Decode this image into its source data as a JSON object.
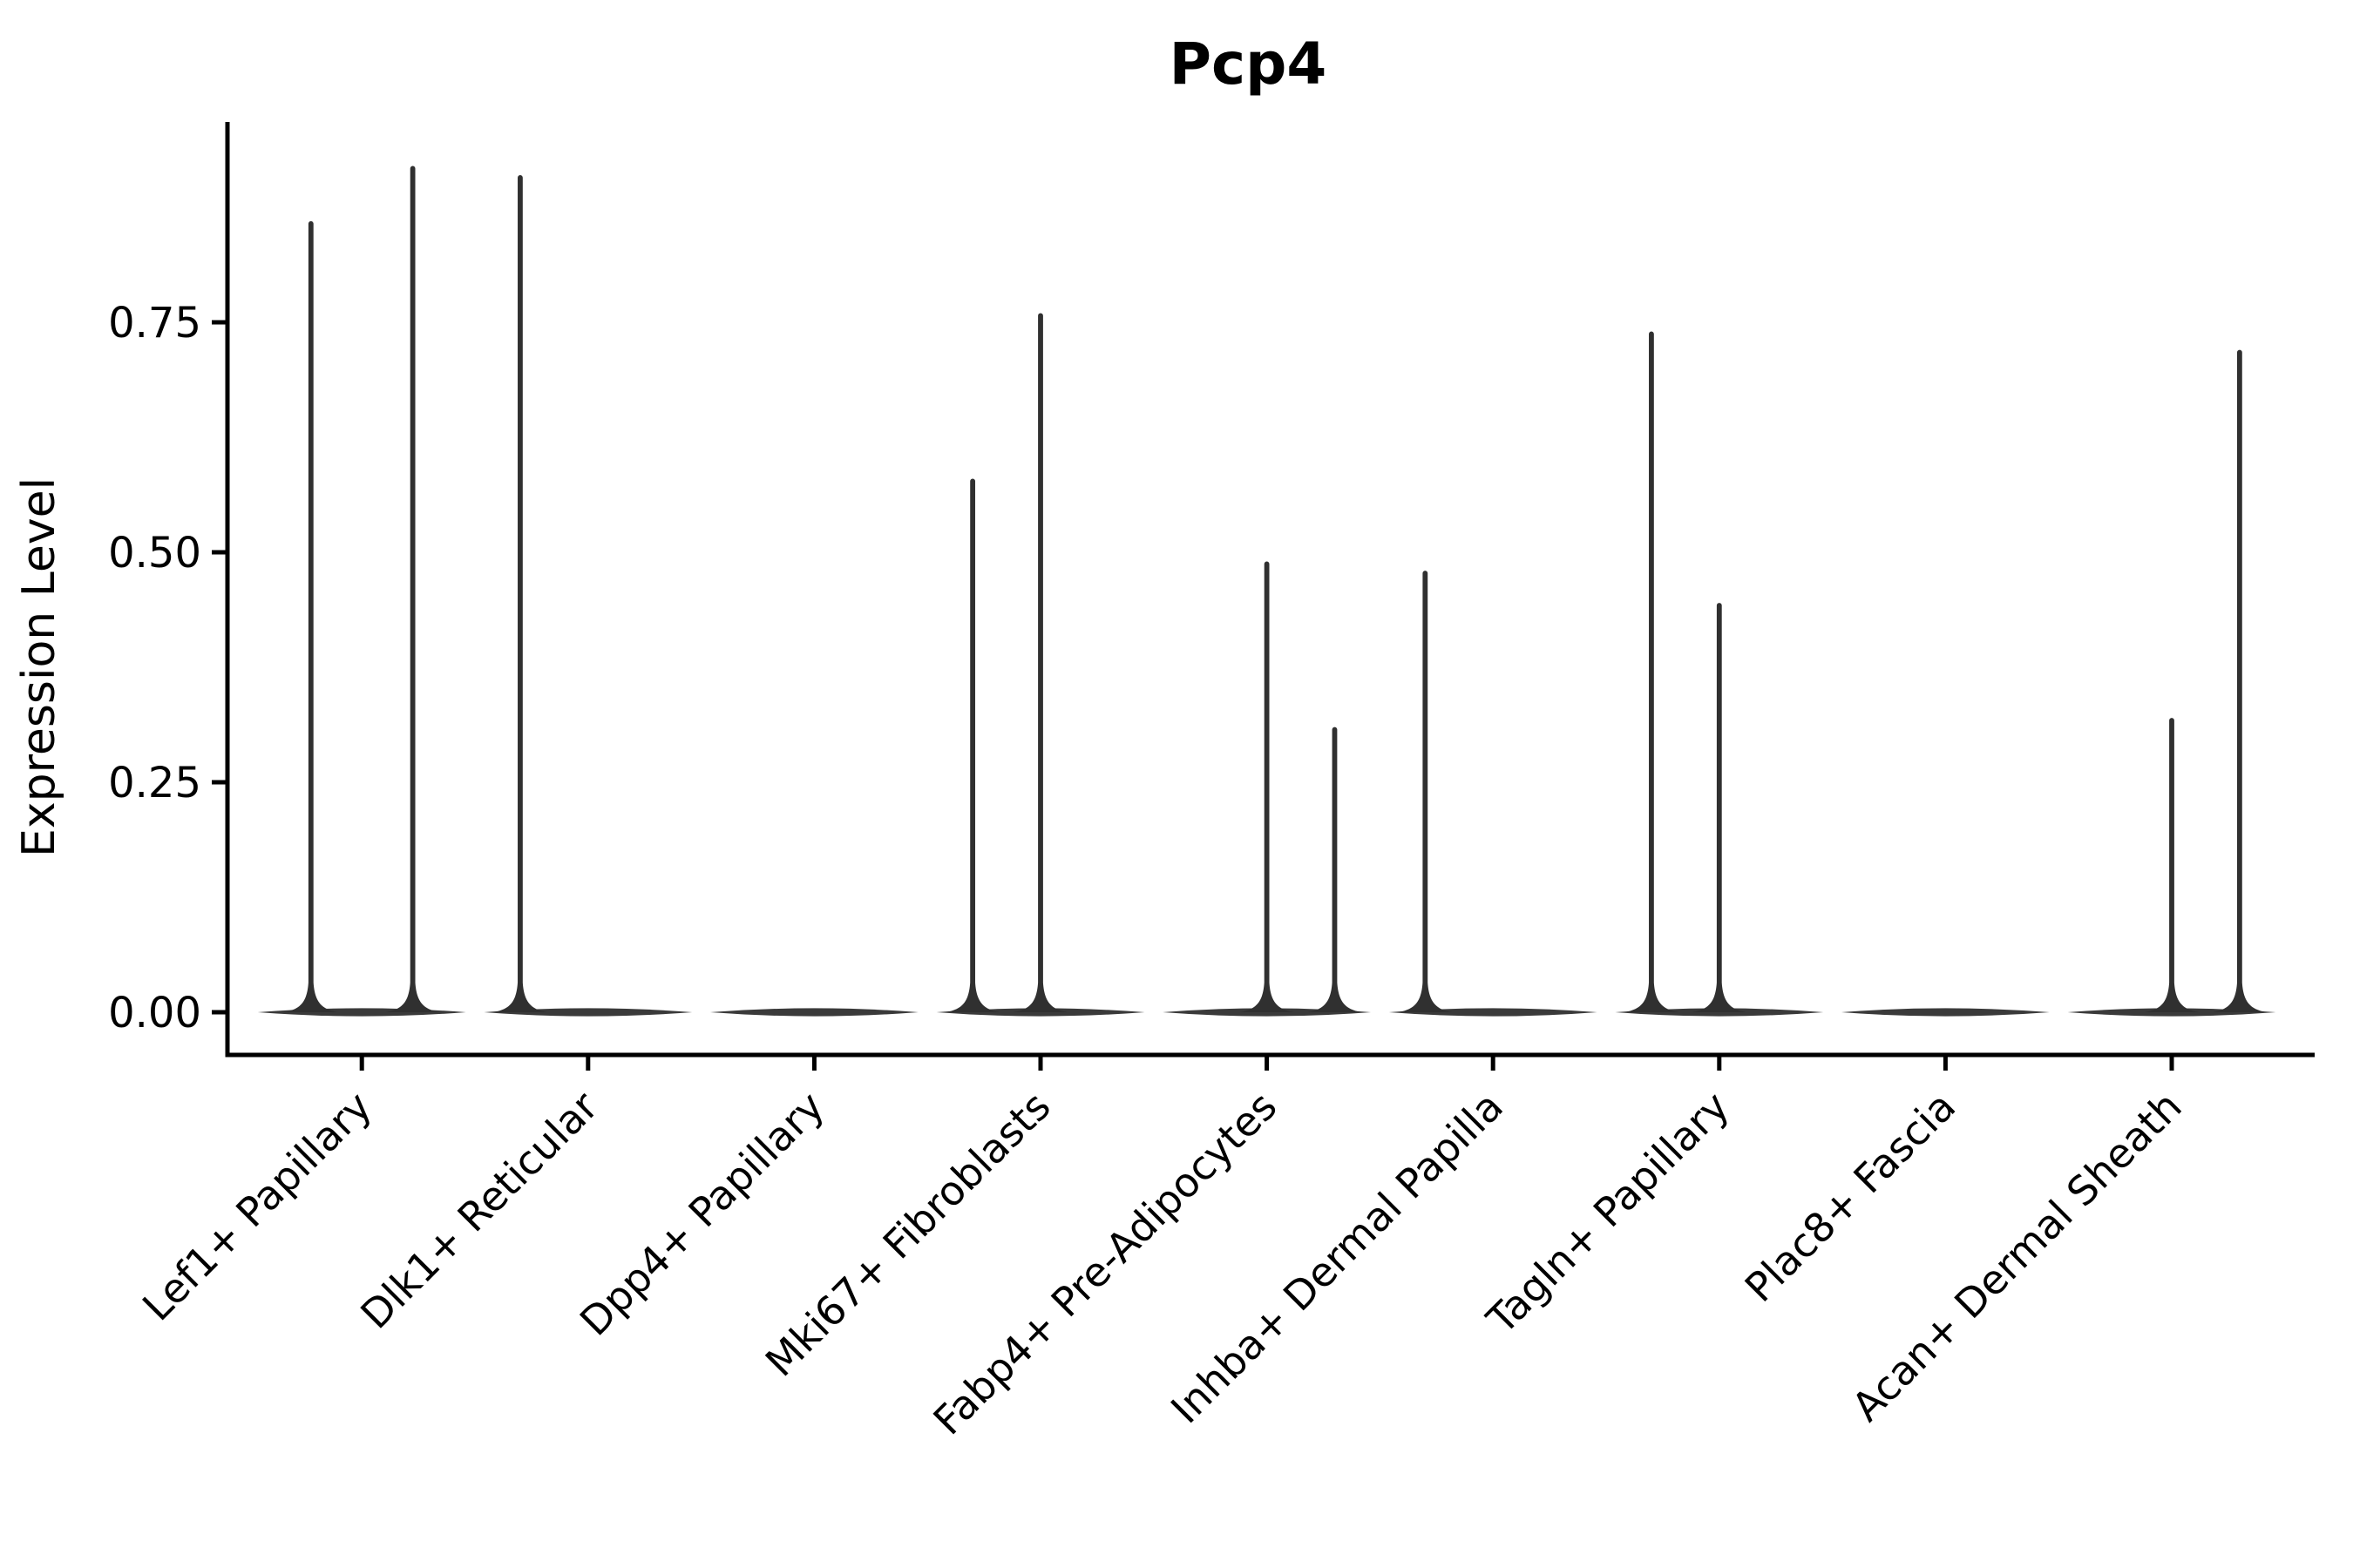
{
  "figure": {
    "title": "Pcp4",
    "y_axis": {
      "label": "Expression Level",
      "tick_labels": [
        "0.00",
        "0.25",
        "0.50",
        "0.75"
      ]
    },
    "colors": {
      "axis": "#000000",
      "text": "#000000",
      "violin_fill": "#303030",
      "violin_base_fill": "#3a3a3a"
    }
  },
  "chart_data": {
    "type": "violin",
    "title": "Pcp4",
    "xlabel": "",
    "ylabel": "Expression Level",
    "ylim": [
      -0.045,
      0.97
    ],
    "yticks": [
      0,
      0.25,
      0.5,
      0.75
    ],
    "ytick_labels": [
      "0.00",
      "0.25",
      "0.50",
      "0.75"
    ],
    "grid": false,
    "legend": null,
    "x_tick_rotation_deg": 45,
    "categories": [
      "Lef1+ Papillary",
      "Dlk1+ Reticular",
      "Dpp4+ Papillary",
      "Mki67+ Fibroblasts",
      "Fabp4+ Pre-Adipocytes",
      "Inhba+ Dermal Papilla",
      "Tagln+ Papillary",
      "Plac8+ Fascia",
      "Acan+ Dermal Sheath"
    ],
    "description": "Violin plot of Pcp4 expression per cluster; density mass sits at 0 (flat base) with thin spikes rising to the maximum expression of dodged sub-violins.",
    "violins": [
      {
        "category": "Lef1+ Papillary",
        "base_halfwidth_frac": 0.46,
        "spikes": [
          {
            "offset_frac": -0.225,
            "max": 0.86
          },
          {
            "offset_frac": 0.225,
            "max": 0.92
          }
        ]
      },
      {
        "category": "Dlk1+ Reticular",
        "base_halfwidth_frac": 0.46,
        "spikes": [
          {
            "offset_frac": -0.3,
            "max": 0.91
          }
        ]
      },
      {
        "category": "Dpp4+ Papillary",
        "base_halfwidth_frac": 0.46,
        "spikes": []
      },
      {
        "category": "Mki67+ Fibroblasts",
        "base_halfwidth_frac": 0.46,
        "spikes": [
          {
            "offset_frac": -0.3,
            "max": 0.58
          },
          {
            "offset_frac": 0.0,
            "max": 0.76
          }
        ]
      },
      {
        "category": "Fabp4+ Pre-Adipocytes",
        "base_halfwidth_frac": 0.46,
        "spikes": [
          {
            "offset_frac": 0.0,
            "max": 0.49
          },
          {
            "offset_frac": 0.3,
            "max": 0.31
          }
        ]
      },
      {
        "category": "Inhba+ Dermal Papilla",
        "base_halfwidth_frac": 0.46,
        "spikes": [
          {
            "offset_frac": -0.3,
            "max": 0.48
          }
        ]
      },
      {
        "category": "Tagln+ Papillary",
        "base_halfwidth_frac": 0.46,
        "spikes": [
          {
            "offset_frac": -0.3,
            "max": 0.74
          },
          {
            "offset_frac": 0.0,
            "max": 0.445
          }
        ]
      },
      {
        "category": "Plac8+ Fascia",
        "base_halfwidth_frac": 0.46,
        "spikes": []
      },
      {
        "category": "Acan+ Dermal Sheath",
        "base_halfwidth_frac": 0.46,
        "spikes": [
          {
            "offset_frac": 0.0,
            "max": 0.32
          },
          {
            "offset_frac": 0.3,
            "max": 0.72
          }
        ]
      }
    ]
  }
}
